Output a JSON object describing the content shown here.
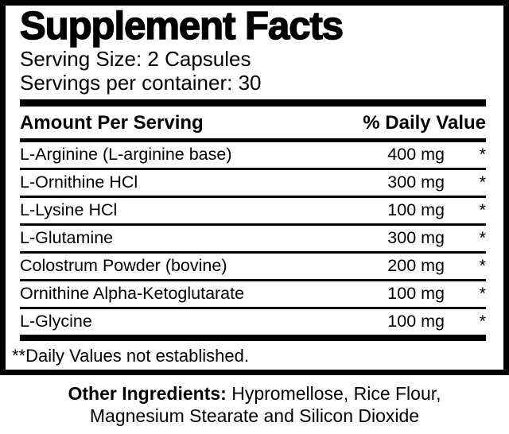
{
  "colors": {
    "ink": "#000000",
    "paper": "#ffffff"
  },
  "label": {
    "title": "Supplement Facts",
    "serving_size": "Serving Size: 2 Capsules",
    "servings_per_container": "Servings per container: 30",
    "columns": {
      "amount_per_serving": "Amount Per Serving",
      "daily_value": "% Daily Value"
    },
    "rows": [
      {
        "name": "L-Arginine (L-arginine base)",
        "amount": "400 mg",
        "daily_value": "*"
      },
      {
        "name": "L-Ornithine HCl",
        "amount": "300 mg",
        "daily_value": "*"
      },
      {
        "name": "L-Lysine HCl",
        "amount": "100 mg",
        "daily_value": "*"
      },
      {
        "name": "L-Glutamine",
        "amount": "300 mg",
        "daily_value": "*"
      },
      {
        "name": "Colostrum Powder (bovine)",
        "amount": "200 mg",
        "daily_value": "*"
      },
      {
        "name": "Ornithine Alpha-Ketoglutarate",
        "amount": "100 mg",
        "daily_value": "*"
      },
      {
        "name": "L-Glycine",
        "amount": "100 mg",
        "daily_value": "*"
      }
    ],
    "footnote": "**Daily Values not established."
  },
  "other_ingredients": {
    "heading": "Other Ingredients:",
    "line1_rest": " Hypromellose, Rice Flour,",
    "line2": "Magnesium Stearate and Silicon Dioxide"
  }
}
